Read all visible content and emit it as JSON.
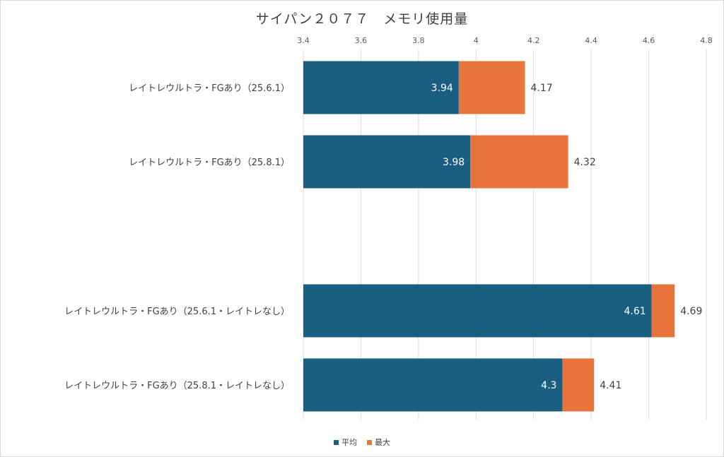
{
  "chart_data": {
    "type": "bar",
    "title": "サイパン２０７７　メモリ使用量",
    "xlim": [
      3.4,
      4.8
    ],
    "x_ticks": [
      "3.4",
      "3.6",
      "3.8",
      "4",
      "4.2",
      "4.4",
      "4.6",
      "4.8"
    ],
    "categories": [
      "レイトレウルトラ・FGあり（25.6.1）",
      "レイトレウルトラ・FGあり（25.8.1）",
      "",
      "レイトレウルトラ・FGあり（25.6.1・レイトレなし）",
      "レイトレウルトラ・FGあり（25.8.1・レイトレなし）"
    ],
    "series": [
      {
        "name": "平均",
        "color": "#1a5f82",
        "values": [
          3.94,
          3.98,
          null,
          4.61,
          4.3
        ],
        "labels": [
          "3.94",
          "3.98",
          "",
          "4.61",
          "4.3"
        ]
      },
      {
        "name": "最大",
        "color": "#e8743b",
        "values": [
          4.17,
          4.32,
          null,
          4.69,
          4.41
        ],
        "labels": [
          "4.17",
          "4.32",
          "",
          "4.69",
          "4.41"
        ]
      }
    ],
    "legend_position": "bottom",
    "grid": true
  }
}
